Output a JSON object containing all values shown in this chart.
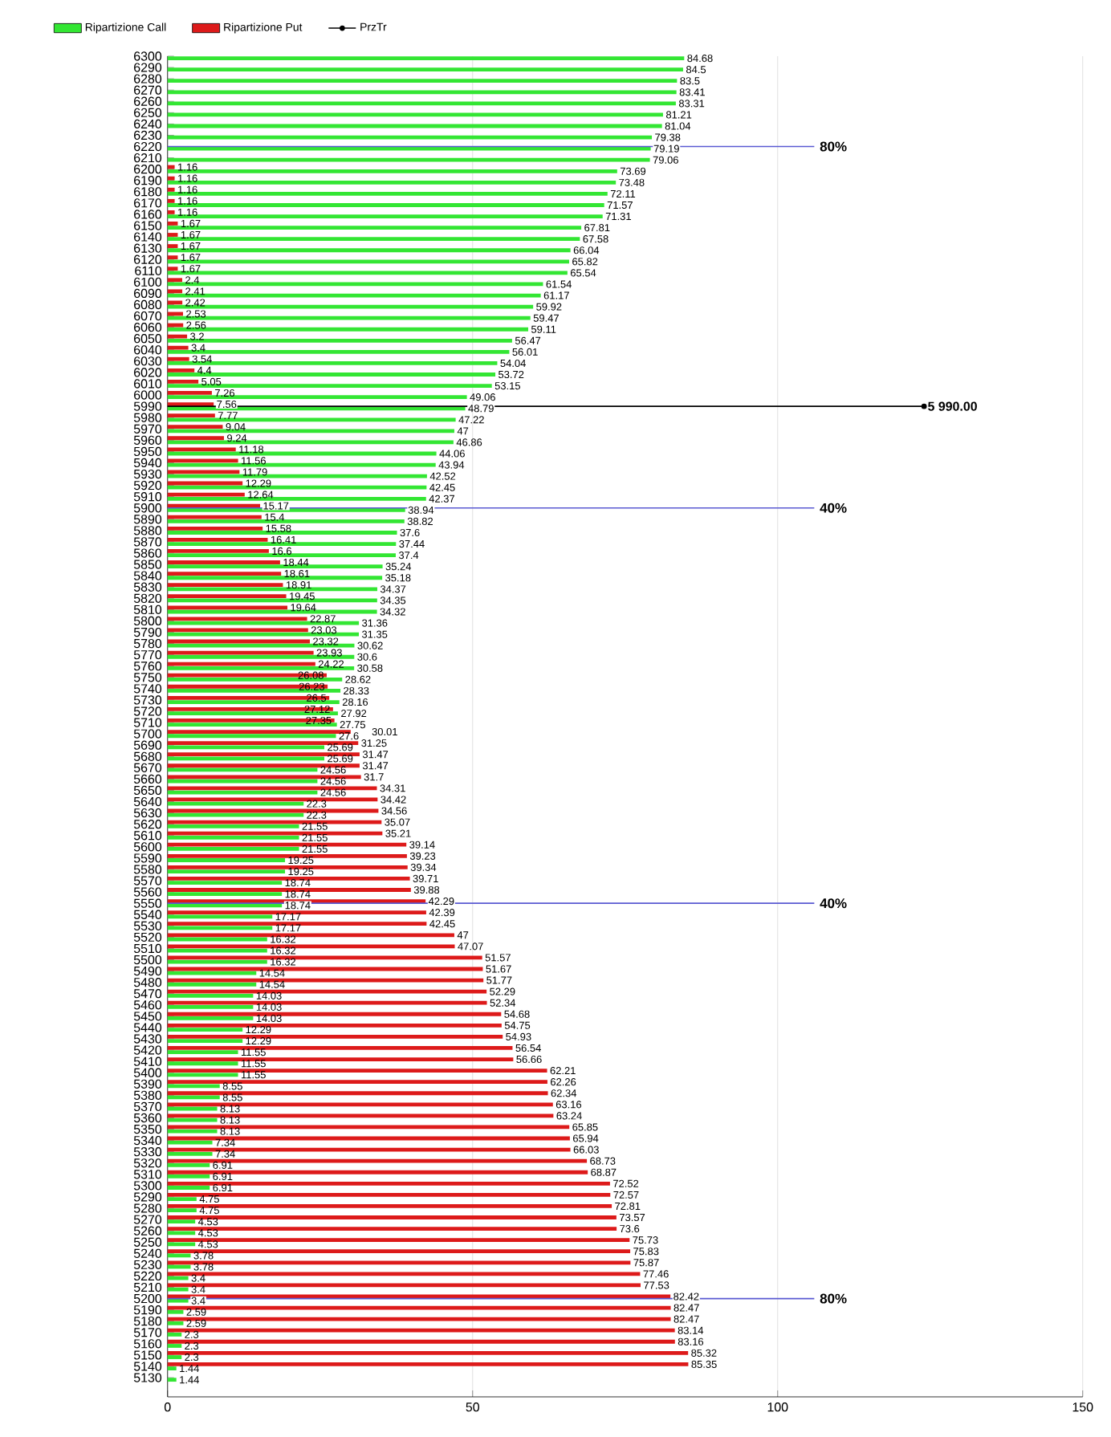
{
  "chart_data": {
    "type": "bar",
    "orientation": "horizontal",
    "x": [
      6300,
      6290,
      6280,
      6270,
      6260,
      6250,
      6240,
      6230,
      6220,
      6210,
      6200,
      6190,
      6180,
      6170,
      6160,
      6150,
      6140,
      6130,
      6120,
      6110,
      6100,
      6090,
      6080,
      6070,
      6060,
      6050,
      6040,
      6030,
      6020,
      6010,
      6000,
      5990,
      5980,
      5970,
      5960,
      5950,
      5940,
      5930,
      5920,
      5910,
      5900,
      5890,
      5880,
      5870,
      5860,
      5850,
      5840,
      5830,
      5820,
      5810,
      5800,
      5790,
      5780,
      5770,
      5760,
      5750,
      5740,
      5730,
      5720,
      5710,
      5700,
      5690,
      5680,
      5670,
      5660,
      5650,
      5640,
      5630,
      5620,
      5610,
      5600,
      5590,
      5580,
      5570,
      5560,
      5550,
      5540,
      5530,
      5520,
      5510,
      5500,
      5490,
      5480,
      5470,
      5460,
      5450,
      5440,
      5430,
      5420,
      5410,
      5400,
      5390,
      5380,
      5370,
      5360,
      5350,
      5340,
      5330,
      5320,
      5310,
      5300,
      5290,
      5280,
      5270,
      5260,
      5250,
      5240,
      5230,
      5220,
      5210,
      5200,
      5190,
      5180,
      5170,
      5160,
      5150,
      5140,
      5130
    ],
    "series": [
      {
        "name": "Ripartizione Call",
        "color": "#33e633",
        "value_labels": [
          "84.68",
          "84.5",
          "83.5",
          "83.41",
          "83.31",
          "81.21",
          "81.04",
          "79.38",
          "79.19",
          "79.06",
          "73.69",
          "73.48",
          "72.11",
          "71.57",
          "71.31",
          "67.81",
          "67.58",
          "66.04",
          "65.82",
          "65.54",
          "61.54",
          "61.17",
          "59.92",
          "59.47",
          "59.11",
          "56.47",
          "56.01",
          "54.04",
          "53.72",
          "53.15",
          "49.06",
          "48.79",
          "47.22",
          "47",
          "46.86",
          "44.06",
          "43.94",
          "42.52",
          "42.45",
          "42.37",
          "38.94",
          "38.82",
          "37.6",
          "37.44",
          "37.4",
          "35.24",
          "35.18",
          "34.37",
          "34.35",
          "34.32",
          "31.36",
          "31.35",
          "30.62",
          "30.6",
          "30.58",
          "28.62",
          "28.33",
          "28.16",
          "27.92",
          "27.75",
          "27.6",
          "25.69",
          "25.69",
          "24.56",
          "24.56",
          "24.56",
          "22.3",
          "22.3",
          "21.55",
          "21.55",
          "21.55",
          "19.25",
          "19.25",
          "18.74",
          "18.74",
          "18.74",
          "17.17",
          "17.17",
          "16.32",
          "16.32",
          "16.32",
          "14.54",
          "14.54",
          "14.03",
          "14.03",
          "14.03",
          "12.29",
          "12.29",
          "11.55",
          "11.55",
          "11.55",
          "8.55",
          "8.55",
          "8.13",
          "8.13",
          "8.13",
          "7.34",
          "7.34",
          "6.91",
          "6.91",
          "6.91",
          "4.75",
          "4.75",
          "4.53",
          "4.53",
          "4.53",
          "3.78",
          "3.78",
          "3.4",
          "3.4",
          "3.4",
          "2.59",
          "2.59",
          "2.3",
          "2.3",
          "2.3",
          "1.44",
          "1.44"
        ],
        "values": [
          84.68,
          84.5,
          83.5,
          83.41,
          83.31,
          81.21,
          81.04,
          79.38,
          79.19,
          79.06,
          73.69,
          73.48,
          72.11,
          71.57,
          71.31,
          67.81,
          67.58,
          66.04,
          65.82,
          65.54,
          61.54,
          61.17,
          59.92,
          59.47,
          59.11,
          56.47,
          56.01,
          54.04,
          53.72,
          53.15,
          49.06,
          48.79,
          47.22,
          47,
          46.86,
          44.06,
          43.94,
          42.52,
          42.45,
          42.37,
          38.94,
          38.82,
          37.6,
          37.44,
          37.4,
          35.24,
          35.18,
          34.37,
          34.35,
          34.32,
          31.36,
          31.35,
          30.62,
          30.6,
          30.58,
          28.62,
          28.33,
          28.16,
          27.92,
          27.75,
          27.6,
          25.69,
          25.69,
          24.56,
          24.56,
          24.56,
          22.3,
          22.3,
          21.55,
          21.55,
          21.55,
          19.25,
          19.25,
          18.74,
          18.74,
          18.74,
          17.17,
          17.17,
          16.32,
          16.32,
          16.32,
          14.54,
          14.54,
          14.03,
          14.03,
          14.03,
          12.29,
          12.29,
          11.55,
          11.55,
          11.55,
          8.55,
          8.55,
          8.13,
          8.13,
          8.13,
          7.34,
          7.34,
          6.91,
          6.91,
          6.91,
          4.75,
          4.75,
          4.53,
          4.53,
          4.53,
          3.78,
          3.78,
          3.4,
          3.4,
          3.4,
          2.59,
          2.59,
          2.3,
          2.3,
          2.3,
          1.44,
          1.44
        ]
      },
      {
        "name": "Ripartizione Put",
        "color": "#dd1a1a",
        "value_labels": [
          null,
          null,
          null,
          null,
          null,
          null,
          null,
          null,
          null,
          null,
          "1.16",
          "1.16",
          "1.16",
          "1.16",
          "1.16",
          "1.67",
          "1.67",
          "1.67",
          "1.67",
          "1.67",
          "2.4",
          "2.41",
          "2.42",
          "2.53",
          "2.56",
          "3.2",
          "3.4",
          "3.54",
          "4.4",
          "5.05",
          "7.26",
          "7.56",
          "7.77",
          "9.04",
          "9.24",
          "11.18",
          "11.56",
          "11.79",
          "12.29",
          "12.64",
          "15.17",
          "15.4",
          "15.58",
          "16.41",
          "16.6",
          "18.44",
          "18.61",
          "18.91",
          "19.45",
          "19.64",
          "22.87",
          "23.03",
          "23.32",
          "23.93",
          "24.22",
          "26.08",
          "26.23",
          "26.5",
          "27.12",
          "27.35",
          "30.01",
          "31.25",
          "31.47",
          "31.47",
          "31.7",
          "34.31",
          "34.42",
          "34.56",
          "35.07",
          "35.21",
          "39.14",
          "39.23",
          "39.34",
          "39.71",
          "39.88",
          "42.29",
          "42.39",
          "42.45",
          "47",
          "47.07",
          "51.57",
          "51.67",
          "51.77",
          "52.29",
          "52.34",
          "54.68",
          "54.75",
          "54.93",
          "56.54",
          "56.66",
          "62.21",
          "62.26",
          "62.34",
          "63.16",
          "63.24",
          "65.85",
          "65.94",
          "66.03",
          "68.73",
          "68.87",
          "72.52",
          "72.57",
          "72.81",
          "73.57",
          "73.6",
          "75.73",
          "75.83",
          "75.87",
          "77.46",
          "77.53",
          "82.42",
          "82.47",
          "82.47",
          "83.14",
          "83.16",
          "85.32",
          "85.35",
          null
        ],
        "values": [
          null,
          null,
          null,
          null,
          null,
          null,
          null,
          null,
          null,
          null,
          1.16,
          1.16,
          1.16,
          1.16,
          1.16,
          1.67,
          1.67,
          1.67,
          1.67,
          1.67,
          2.4,
          2.41,
          2.42,
          2.53,
          2.56,
          3.2,
          3.4,
          3.54,
          4.4,
          5.05,
          7.26,
          7.56,
          7.77,
          9.04,
          9.24,
          11.18,
          11.56,
          11.79,
          12.29,
          12.64,
          15.17,
          15.4,
          15.58,
          16.41,
          16.6,
          18.44,
          18.61,
          18.91,
          19.45,
          19.64,
          22.87,
          23.03,
          23.32,
          23.93,
          24.22,
          26.08,
          26.23,
          26.5,
          27.12,
          27.35,
          30.01,
          31.25,
          31.47,
          31.47,
          31.7,
          34.31,
          34.42,
          34.56,
          35.07,
          35.21,
          39.14,
          39.23,
          39.34,
          39.71,
          39.88,
          42.29,
          42.39,
          42.45,
          47,
          47.07,
          51.57,
          51.67,
          51.77,
          52.29,
          52.34,
          54.68,
          54.75,
          54.93,
          56.54,
          56.66,
          62.21,
          62.26,
          62.34,
          63.16,
          63.24,
          65.85,
          65.94,
          66.03,
          68.73,
          68.87,
          72.52,
          72.57,
          72.81,
          73.57,
          73.6,
          75.73,
          75.83,
          75.87,
          77.46,
          77.53,
          82.42,
          82.47,
          82.47,
          83.14,
          83.16,
          85.32,
          85.35,
          null
        ]
      },
      {
        "name": "PrzTr",
        "type": "line",
        "color": "#000000",
        "x": [
          5990,
          5990
        ],
        "values": [
          0,
          124
        ]
      }
    ],
    "xlim": [
      0,
      150
    ],
    "xticks": [
      0,
      50,
      100,
      150
    ],
    "ylim": [
      5113,
      6300
    ],
    "yticks": [
      6300,
      6290,
      6280,
      6270,
      6260,
      6250,
      6240,
      6230,
      6220,
      6210,
      6200,
      6190,
      6180,
      6170,
      6160,
      6150,
      6140,
      6130,
      6120,
      6110,
      6100,
      6090,
      6080,
      6070,
      6060,
      6050,
      6040,
      6030,
      6020,
      6010,
      6000,
      5990,
      5980,
      5970,
      5960,
      5950,
      5940,
      5930,
      5920,
      5910,
      5900,
      5890,
      5880,
      5870,
      5860,
      5850,
      5840,
      5830,
      5820,
      5810,
      5800,
      5790,
      5780,
      5770,
      5760,
      5750,
      5740,
      5730,
      5720,
      5710,
      5700,
      5690,
      5680,
      5670,
      5660,
      5650,
      5640,
      5630,
      5620,
      5610,
      5600,
      5590,
      5580,
      5570,
      5560,
      5550,
      5540,
      5530,
      5520,
      5510,
      5500,
      5490,
      5480,
      5470,
      5460,
      5450,
      5440,
      5430,
      5420,
      5410,
      5400,
      5390,
      5380,
      5370,
      5360,
      5350,
      5340,
      5330,
      5320,
      5310,
      5300,
      5290,
      5280,
      5270,
      5260,
      5250,
      5240,
      5230,
      5220,
      5210,
      5200,
      5190,
      5180,
      5170,
      5160,
      5150,
      5140,
      5130
    ],
    "ref_lines": [
      {
        "axis": "y",
        "value": 6220,
        "color": "#5a5ad2"
      },
      {
        "axis": "y",
        "value": 5900,
        "color": "#5a5ad2"
      },
      {
        "axis": "y",
        "value": 5550,
        "color": "#5a5ad2"
      },
      {
        "axis": "y",
        "value": 5200,
        "color": "#5a5ad2"
      }
    ],
    "annotations": [
      "5 990.00",
      "80%",
      "40%",
      "40%",
      "80%"
    ],
    "grid": "x",
    "legend": "top left"
  }
}
